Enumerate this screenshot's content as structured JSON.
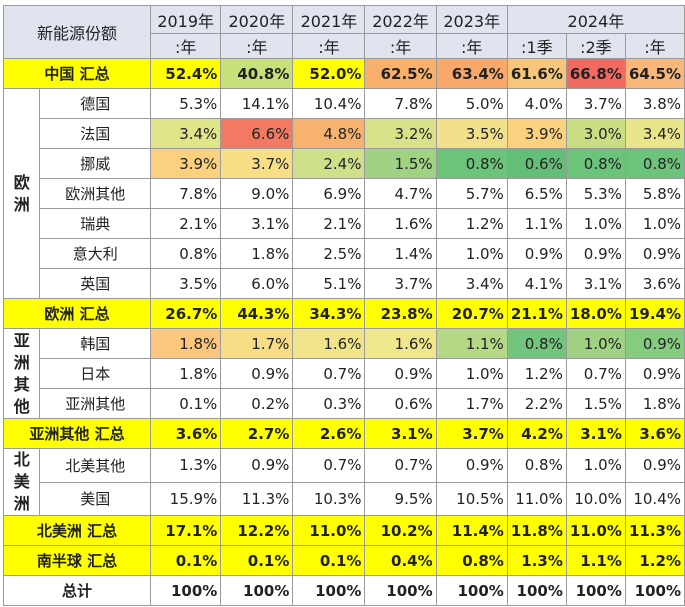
{
  "header": {
    "title": "新能源份额",
    "years": [
      "2019年",
      "2020年",
      "2021年",
      "2022年",
      "2023年"
    ],
    "year_2024": "2024年",
    "subheaders": [
      ":年",
      ":年",
      ":年",
      ":年",
      ":年",
      ":1季",
      ":2季",
      ":年"
    ]
  },
  "groups": {
    "china_total": {
      "label": "中国 汇总",
      "values": [
        "52.4%",
        "40.8%",
        "52.0%",
        "62.5%",
        "63.4%",
        "61.6%",
        "66.8%",
        "64.5%"
      ],
      "colors": [
        "#ffff00",
        "#c6e07a",
        "#ffff00",
        "#f8b06a",
        "#f8a86a",
        "#f8c67a",
        "#f26a5f",
        "#f8b87a"
      ]
    },
    "europe": {
      "region": "欧洲",
      "rows": [
        {
          "label": "德国",
          "values": [
            "5.3%",
            "14.1%",
            "10.4%",
            "7.8%",
            "5.0%",
            "4.0%",
            "3.7%",
            "3.8%"
          ],
          "colors": [
            "#ffffff",
            "#ffffff",
            "#ffffff",
            "#ffffff",
            "#ffffff",
            "#ffffff",
            "#ffffff",
            "#ffffff"
          ]
        },
        {
          "label": "法国",
          "values": [
            "3.4%",
            "6.6%",
            "4.8%",
            "3.2%",
            "3.5%",
            "3.9%",
            "3.0%",
            "3.4%"
          ],
          "colors": [
            "#e1e58a",
            "#f27a62",
            "#f6b26e",
            "#d9e28a",
            "#f2e08a",
            "#fbd07e",
            "#c8dd84",
            "#e8e58a"
          ]
        },
        {
          "label": "挪威",
          "values": [
            "3.9%",
            "3.7%",
            "2.4%",
            "1.5%",
            "0.8%",
            "0.6%",
            "0.8%",
            "0.8%"
          ],
          "colors": [
            "#fbd07e",
            "#f8df86",
            "#cfe08a",
            "#9fd282",
            "#6cc37a",
            "#63bf78",
            "#6cc37a",
            "#6cc37a"
          ]
        },
        {
          "label": "欧洲其他",
          "values": [
            "7.8%",
            "9.0%",
            "6.9%",
            "4.7%",
            "5.7%",
            "6.5%",
            "5.3%",
            "5.8%"
          ],
          "colors": [
            "#ffffff",
            "#ffffff",
            "#ffffff",
            "#ffffff",
            "#ffffff",
            "#ffffff",
            "#ffffff",
            "#ffffff"
          ]
        },
        {
          "label": "瑞典",
          "values": [
            "2.1%",
            "3.1%",
            "2.1%",
            "1.6%",
            "1.2%",
            "1.1%",
            "1.0%",
            "1.0%"
          ],
          "colors": [
            "#ffffff",
            "#ffffff",
            "#ffffff",
            "#ffffff",
            "#ffffff",
            "#ffffff",
            "#ffffff",
            "#ffffff"
          ]
        },
        {
          "label": "意大利",
          "values": [
            "0.8%",
            "1.8%",
            "2.5%",
            "1.4%",
            "1.0%",
            "0.9%",
            "0.9%",
            "0.9%"
          ],
          "colors": [
            "#ffffff",
            "#ffffff",
            "#ffffff",
            "#ffffff",
            "#ffffff",
            "#ffffff",
            "#ffffff",
            "#ffffff"
          ]
        },
        {
          "label": "英国",
          "values": [
            "3.5%",
            "6.0%",
            "5.1%",
            "3.7%",
            "3.4%",
            "4.1%",
            "3.1%",
            "3.6%"
          ],
          "colors": [
            "#ffffff",
            "#ffffff",
            "#ffffff",
            "#ffffff",
            "#ffffff",
            "#ffffff",
            "#ffffff",
            "#ffffff"
          ]
        }
      ],
      "total": {
        "label": "欧洲 汇总",
        "values": [
          "26.7%",
          "44.3%",
          "34.3%",
          "23.8%",
          "20.7%",
          "21.1%",
          "18.0%",
          "19.4%"
        ]
      }
    },
    "asia_other": {
      "region": "亚洲其他",
      "rows": [
        {
          "label": "韩国",
          "values": [
            "1.8%",
            "1.7%",
            "1.6%",
            "1.6%",
            "1.1%",
            "0.8%",
            "1.0%",
            "0.9%"
          ],
          "colors": [
            "#fbc67e",
            "#f8dc86",
            "#f2e48a",
            "#f0e68c",
            "#b4d886",
            "#73c47c",
            "#9fd282",
            "#86cc80"
          ]
        },
        {
          "label": "日本",
          "values": [
            "1.8%",
            "0.9%",
            "0.7%",
            "0.9%",
            "1.0%",
            "1.2%",
            "0.7%",
            "0.9%"
          ],
          "colors": [
            "#ffffff",
            "#ffffff",
            "#ffffff",
            "#ffffff",
            "#ffffff",
            "#ffffff",
            "#ffffff",
            "#ffffff"
          ]
        },
        {
          "label": "亚洲其他",
          "values": [
            "0.1%",
            "0.2%",
            "0.3%",
            "0.6%",
            "1.7%",
            "2.2%",
            "1.5%",
            "1.8%"
          ],
          "colors": [
            "#ffffff",
            "#ffffff",
            "#ffffff",
            "#ffffff",
            "#ffffff",
            "#ffffff",
            "#ffffff",
            "#ffffff"
          ]
        }
      ],
      "total": {
        "label": "亚洲其他 汇总",
        "values": [
          "3.6%",
          "2.7%",
          "2.6%",
          "3.1%",
          "3.7%",
          "4.2%",
          "3.1%",
          "3.6%"
        ]
      }
    },
    "north_america": {
      "region": "北美洲",
      "rows": [
        {
          "label": "北美其他",
          "values": [
            "1.3%",
            "0.9%",
            "0.7%",
            "0.7%",
            "0.9%",
            "0.8%",
            "1.0%",
            "0.9%"
          ],
          "colors": [
            "#ffffff",
            "#ffffff",
            "#ffffff",
            "#ffffff",
            "#ffffff",
            "#ffffff",
            "#ffffff",
            "#ffffff"
          ]
        },
        {
          "label": "美国",
          "values": [
            "15.9%",
            "11.3%",
            "10.3%",
            "9.5%",
            "10.5%",
            "11.0%",
            "10.0%",
            "10.4%"
          ],
          "colors": [
            "#ffffff",
            "#ffffff",
            "#ffffff",
            "#ffffff",
            "#ffffff",
            "#ffffff",
            "#ffffff",
            "#ffffff"
          ]
        }
      ],
      "total": {
        "label": "北美洲 汇总",
        "values": [
          "17.1%",
          "12.2%",
          "11.0%",
          "10.2%",
          "11.4%",
          "11.8%",
          "11.0%",
          "11.3%"
        ]
      }
    },
    "south_total": {
      "label": "南半球 汇总",
      "values": [
        "0.1%",
        "0.1%",
        "0.1%",
        "0.4%",
        "0.8%",
        "1.3%",
        "1.1%",
        "1.2%"
      ]
    },
    "grand_total": {
      "label": "总计",
      "values": [
        "100%",
        "100%",
        "100%",
        "100%",
        "100%",
        "100%",
        "100%",
        "100%"
      ]
    }
  },
  "colors": {
    "header_bg": "#dfe4ee",
    "total_bg": "#ffff00",
    "border": "#9a9a9a"
  }
}
